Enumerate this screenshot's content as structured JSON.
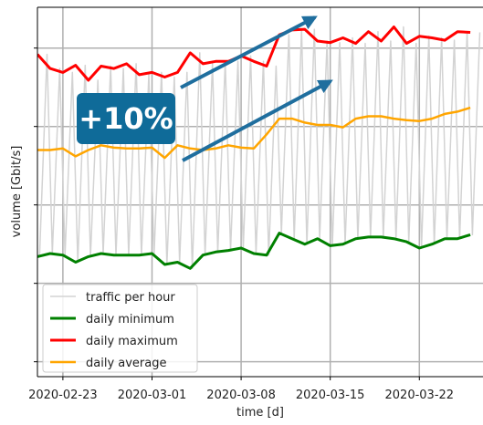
{
  "chart_data": {
    "type": "line",
    "xlabel": "time [d]",
    "ylabel": "volume [Gbit/s]",
    "annotation": "+10%",
    "xlim": [
      "2020-02-21",
      "2020-03-27"
    ],
    "xticks": [
      "2020-02-23",
      "2020-03-01",
      "2020-03-08",
      "2020-03-15",
      "2020-03-22"
    ],
    "ylim": [
      -0.19,
      4.52
    ],
    "yticks": [
      0,
      1,
      2,
      3,
      4
    ],
    "grid": true,
    "legend": "lower left",
    "x": [
      "2020-02-21",
      "2020-02-22",
      "2020-02-23",
      "2020-02-24",
      "2020-02-25",
      "2020-02-26",
      "2020-02-27",
      "2020-02-28",
      "2020-02-29",
      "2020-03-01",
      "2020-03-02",
      "2020-03-03",
      "2020-03-04",
      "2020-03-05",
      "2020-03-06",
      "2020-03-07",
      "2020-03-08",
      "2020-03-09",
      "2020-03-10",
      "2020-03-11",
      "2020-03-12",
      "2020-03-13",
      "2020-03-14",
      "2020-03-15",
      "2020-03-16",
      "2020-03-17",
      "2020-03-18",
      "2020-03-19",
      "2020-03-20",
      "2020-03-21",
      "2020-03-22",
      "2020-03-23",
      "2020-03-24",
      "2020-03-25",
      "2020-03-26"
    ],
    "series": [
      {
        "name": "traffic per hour",
        "color": "#d3d3d3",
        "width": 1.5,
        "x": [
          "2020-02-21 04:00",
          "2020-02-21 18:00",
          "2020-02-22 04:00",
          "2020-02-22 18:00",
          "2020-02-23 04:00",
          "2020-02-23 18:00",
          "2020-02-24 04:00",
          "2020-02-24 18:00",
          "2020-02-25 04:00",
          "2020-02-25 18:00",
          "2020-02-26 04:00",
          "2020-02-26 18:00",
          "2020-02-27 04:00",
          "2020-02-27 18:00",
          "2020-02-28 04:00",
          "2020-02-28 18:00",
          "2020-02-29 04:00",
          "2020-02-29 18:00",
          "2020-03-01 04:00",
          "2020-03-01 18:00",
          "2020-03-02 04:00",
          "2020-03-02 18:00",
          "2020-03-03 04:00",
          "2020-03-03 18:00",
          "2020-03-04 04:00",
          "2020-03-04 18:00",
          "2020-03-05 04:00",
          "2020-03-05 18:00",
          "2020-03-06 04:00",
          "2020-03-06 18:00",
          "2020-03-07 04:00",
          "2020-03-07 18:00",
          "2020-03-08 04:00",
          "2020-03-08 18:00",
          "2020-03-09 04:00",
          "2020-03-09 18:00",
          "2020-03-10 04:00",
          "2020-03-10 18:00",
          "2020-03-11 04:00",
          "2020-03-11 18:00",
          "2020-03-12 04:00",
          "2020-03-12 18:00",
          "2020-03-13 04:00",
          "2020-03-13 18:00",
          "2020-03-14 04:00",
          "2020-03-14 18:00",
          "2020-03-15 04:00",
          "2020-03-15 18:00",
          "2020-03-16 04:00",
          "2020-03-16 18:00",
          "2020-03-17 04:00",
          "2020-03-17 18:00",
          "2020-03-18 04:00",
          "2020-03-18 18:00",
          "2020-03-19 04:00",
          "2020-03-19 18:00",
          "2020-03-20 04:00",
          "2020-03-20 18:00",
          "2020-03-21 04:00",
          "2020-03-21 18:00",
          "2020-03-22 04:00",
          "2020-03-22 18:00",
          "2020-03-23 04:00",
          "2020-03-23 18:00",
          "2020-03-24 04:00",
          "2020-03-24 18:00",
          "2020-03-25 04:00",
          "2020-03-25 18:00",
          "2020-03-26 04:00",
          "2020-03-26 18:00"
        ],
        "values": [
          1.34,
          3.92,
          1.38,
          3.74,
          1.36,
          3.69,
          1.27,
          3.78,
          1.34,
          3.59,
          1.38,
          3.77,
          1.36,
          3.74,
          1.36,
          3.8,
          1.36,
          3.66,
          1.38,
          3.69,
          1.24,
          3.63,
          1.27,
          3.69,
          1.19,
          3.94,
          1.36,
          3.8,
          1.4,
          3.83,
          1.42,
          3.83,
          1.45,
          3.9,
          1.38,
          3.83,
          1.36,
          3.77,
          1.64,
          4.17,
          1.57,
          4.23,
          1.5,
          4.24,
          1.57,
          4.09,
          1.48,
          4.07,
          1.5,
          4.13,
          1.57,
          4.06,
          1.59,
          4.21,
          1.59,
          4.09,
          1.57,
          4.27,
          1.53,
          4.06,
          1.45,
          4.15,
          1.5,
          4.13,
          1.57,
          4.1,
          1.57,
          4.21,
          1.62,
          4.2
        ]
      },
      {
        "name": "daily minimum",
        "color": "#008000",
        "width": 3,
        "values": [
          1.34,
          1.38,
          1.36,
          1.27,
          1.34,
          1.38,
          1.36,
          1.36,
          1.36,
          1.38,
          1.24,
          1.27,
          1.19,
          1.36,
          1.4,
          1.42,
          1.45,
          1.38,
          1.36,
          1.64,
          1.57,
          1.5,
          1.57,
          1.48,
          1.5,
          1.57,
          1.59,
          1.59,
          1.57,
          1.53,
          1.45,
          1.5,
          1.57,
          1.57,
          1.62
        ]
      },
      {
        "name": "daily maximum",
        "color": "#ff0000",
        "width": 3,
        "values": [
          3.92,
          3.74,
          3.69,
          3.78,
          3.59,
          3.77,
          3.74,
          3.8,
          3.66,
          3.69,
          3.63,
          3.69,
          3.94,
          3.8,
          3.83,
          3.83,
          3.9,
          3.83,
          3.77,
          4.17,
          4.23,
          4.24,
          4.09,
          4.07,
          4.13,
          4.06,
          4.21,
          4.09,
          4.27,
          4.06,
          4.15,
          4.13,
          4.1,
          4.21,
          4.2
        ]
      },
      {
        "name": "daily average",
        "color": "#ffa500",
        "width": 2.5,
        "values": [
          2.7,
          2.7,
          2.72,
          2.62,
          2.7,
          2.76,
          2.73,
          2.72,
          2.72,
          2.73,
          2.6,
          2.76,
          2.72,
          2.7,
          2.72,
          2.76,
          2.73,
          2.72,
          2.9,
          3.1,
          3.1,
          3.05,
          3.02,
          3.02,
          2.99,
          3.1,
          3.13,
          3.13,
          3.1,
          3.08,
          3.07,
          3.1,
          3.16,
          3.19,
          3.24
        ]
      }
    ]
  }
}
